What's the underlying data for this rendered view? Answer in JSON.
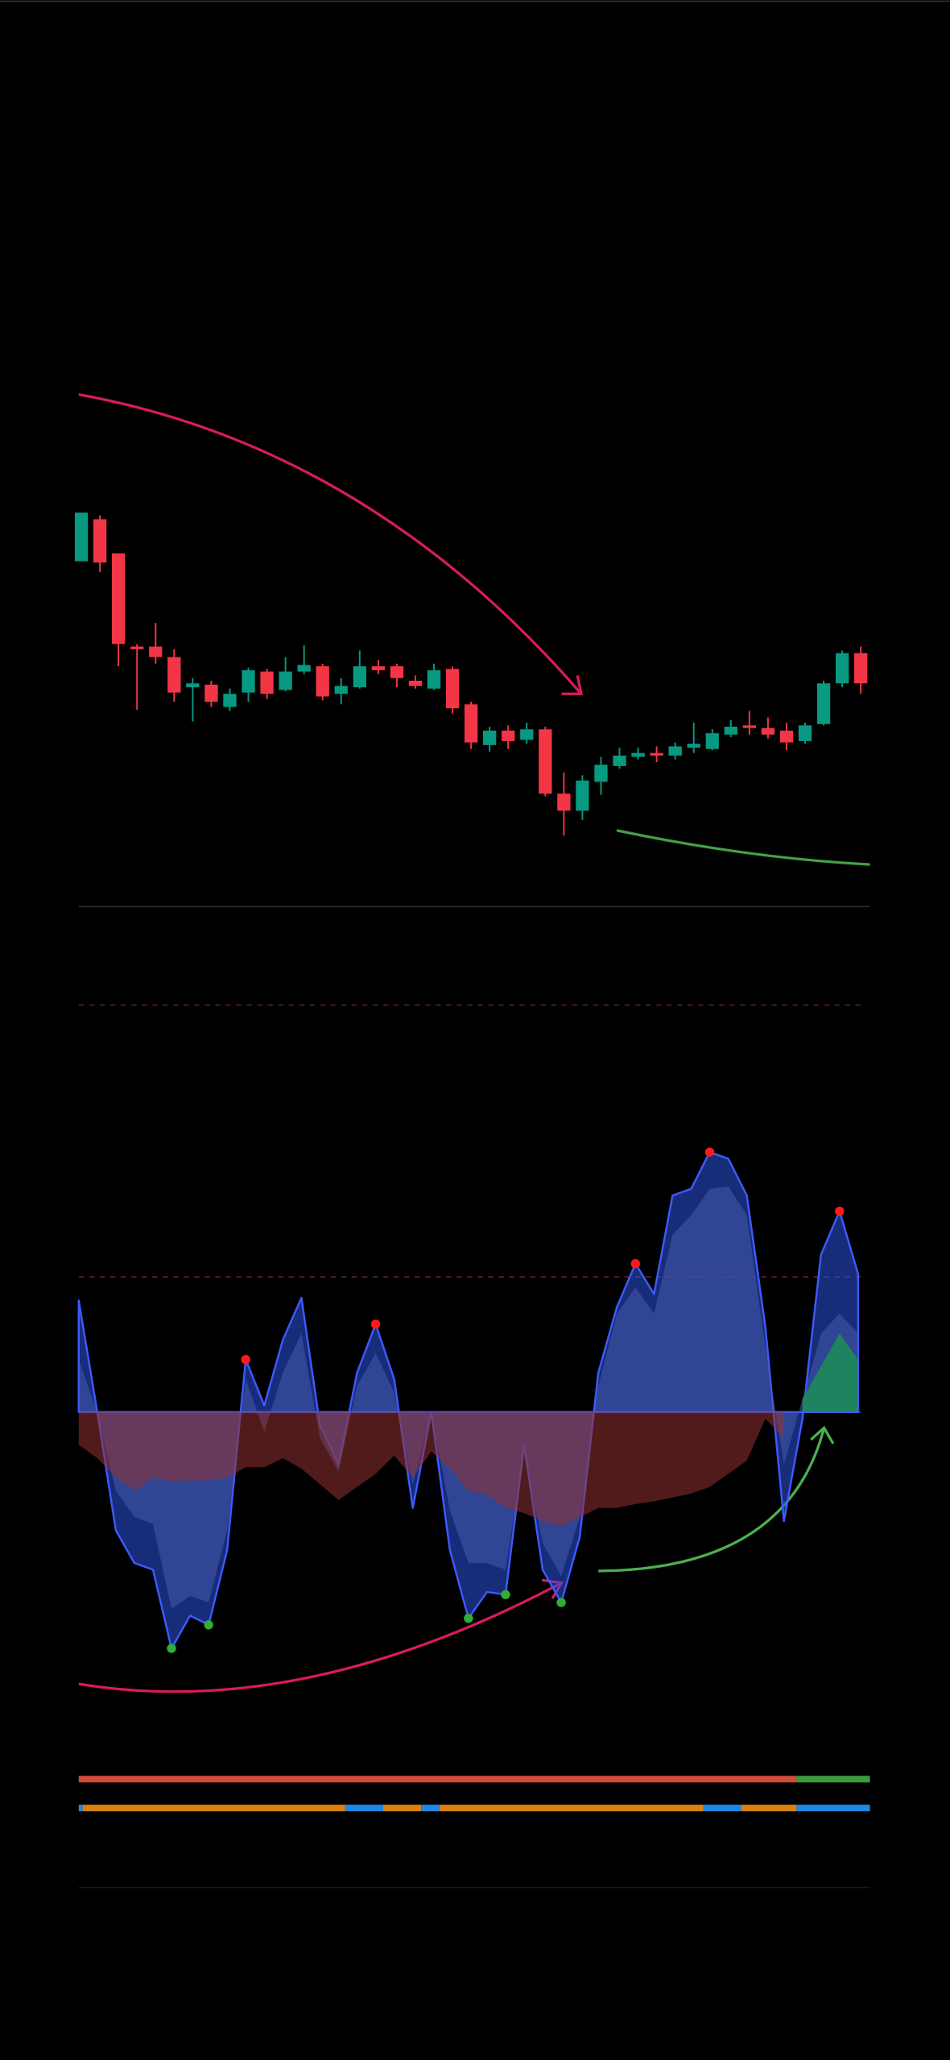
{
  "chart_data": [
    {
      "type": "candlestick",
      "up_color": "#089981",
      "down_color": "#f23645",
      "ylim": [
        0,
        400
      ],
      "open": [
        263,
        295,
        269,
        198,
        198,
        190,
        167,
        169,
        152,
        163,
        179,
        165,
        179,
        183,
        162,
        167,
        183,
        183,
        172,
        166,
        181,
        154,
        123,
        134,
        127,
        135,
        86,
        73,
        95,
        107,
        114,
        117,
        115,
        121,
        120,
        131,
        138,
        136,
        134,
        126,
        139,
        170,
        193
      ],
      "high": [
        300,
        298,
        269,
        200,
        216,
        196,
        174,
        172,
        166,
        182,
        181,
        190,
        199,
        185,
        174,
        195,
        188,
        185,
        176,
        185,
        183,
        156,
        137,
        138,
        140,
        137,
        102,
        100,
        114,
        121,
        121,
        122,
        125,
        140,
        135,
        142,
        149,
        144,
        140,
        140,
        172,
        195,
        198
      ],
      "low": [
        263,
        255,
        183,
        150,
        185,
        156,
        141,
        152,
        149,
        156,
        158,
        164,
        177,
        157,
        154,
        166,
        177,
        167,
        166,
        165,
        147,
        120,
        118,
        120,
        124,
        84,
        54,
        66,
        85,
        105,
        112,
        110,
        112,
        117,
        119,
        129,
        131,
        128,
        119,
        124,
        138,
        167,
        162
      ],
      "close": [
        300,
        262,
        200,
        196,
        190,
        163,
        170,
        156,
        162,
        180,
        162,
        179,
        184,
        160,
        168,
        183,
        180,
        174,
        168,
        180,
        151,
        125,
        134,
        126,
        135,
        86,
        73,
        96,
        108,
        115,
        117,
        115,
        122,
        124,
        132,
        137,
        136,
        131,
        125,
        138,
        170,
        193,
        170
      ]
    },
    {
      "type": "area",
      "ylim": [
        -225,
        385
      ],
      "yticks": [
        0,
        103,
        310
      ],
      "series": [
        {
          "color": "#3d5afe",
          "values": [
            85,
            0,
            -90,
            -115,
            -120,
            -180,
            -155,
            -162,
            -105,
            40,
            5,
            55,
            87,
            -10,
            -40,
            30,
            67,
            25,
            -73,
            0,
            -105,
            -157,
            -137,
            -139,
            -25,
            -120,
            -145,
            -95,
            30,
            80,
            113,
            90,
            165,
            170,
            198,
            193,
            165,
            65,
            -83,
            -5,
            120,
            153,
            105
          ]
        },
        {
          "color": "#4a63b8",
          "values": [
            40,
            0,
            -60,
            -80,
            -85,
            -150,
            -140,
            -145,
            -90,
            25,
            -15,
            30,
            60,
            -20,
            -45,
            20,
            45,
            15,
            -55,
            0,
            -75,
            -115,
            -115,
            -120,
            -30,
            -100,
            -125,
            -80,
            20,
            75,
            95,
            75,
            135,
            150,
            170,
            172,
            150,
            50,
            -40,
            10,
            60,
            75,
            60
          ]
        },
        {
          "color": "#7a2a2a",
          "values": [
            -25,
            -35,
            -50,
            -60,
            -50,
            -53,
            -52,
            -52,
            -50,
            -42,
            -42,
            -35,
            -43,
            -55,
            -67,
            -57,
            -47,
            -33,
            -50,
            -30,
            -43,
            -60,
            -63,
            -73,
            -77,
            -83,
            -87,
            -80,
            -73,
            -73,
            -70,
            -68,
            -65,
            -62,
            -57,
            -47,
            -37,
            -5,
            -20,
            null,
            null,
            null,
            null
          ]
        },
        {
          "color": "#1e8a5a",
          "values": [
            null,
            null,
            null,
            null,
            null,
            null,
            null,
            null,
            null,
            null,
            null,
            null,
            null,
            null,
            null,
            null,
            null,
            null,
            null,
            null,
            null,
            null,
            null,
            null,
            null,
            null,
            null,
            null,
            null,
            null,
            null,
            null,
            null,
            null,
            null,
            null,
            null,
            null,
            null,
            10,
            35,
            60,
            40
          ]
        }
      ],
      "pivot_highs": [
        9,
        16,
        30,
        34,
        41
      ],
      "pivot_lows": [
        5,
        7,
        21,
        23,
        26
      ],
      "high_color": "#ff1a1a",
      "low_color": "#2fae3a"
    }
  ]
}
